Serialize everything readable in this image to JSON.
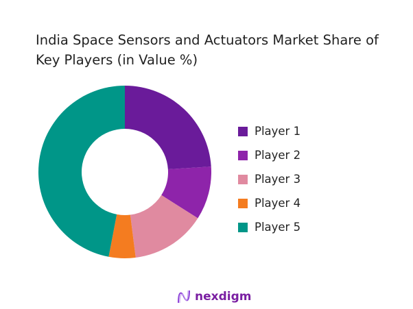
{
  "chart_data": {
    "type": "pie",
    "variant": "donut",
    "title": "India Space Sensors and Actuators Market Share of Key Players (in Value %)",
    "categories": [
      "Player 1",
      "Player 2",
      "Player 3",
      "Player 4",
      "Player 5"
    ],
    "values": [
      24,
      10,
      14,
      5,
      47
    ],
    "colors": [
      "#6a1b9a",
      "#8e24aa",
      "#e08aa0",
      "#f47c20",
      "#009688"
    ],
    "legend_position": "right"
  },
  "logo": {
    "text": "nexdigm"
  }
}
